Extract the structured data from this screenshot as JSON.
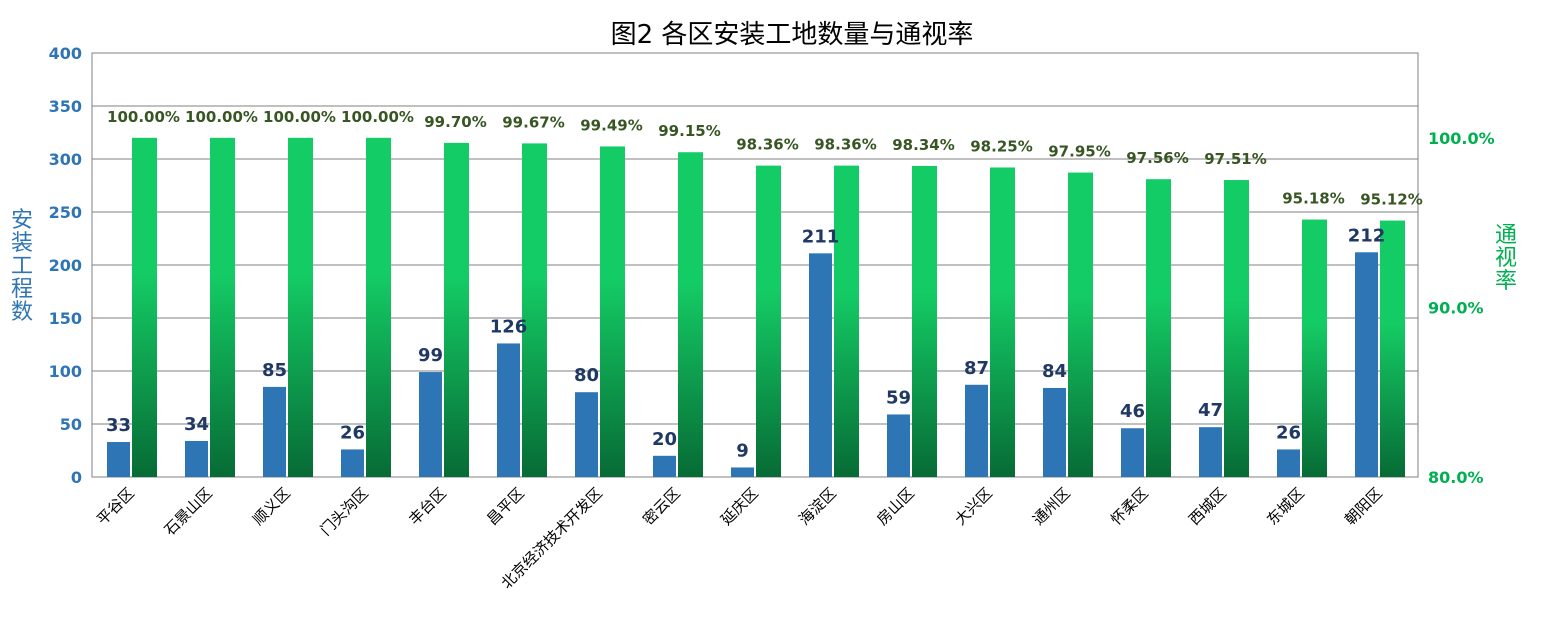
{
  "chart_data": {
    "type": "bar",
    "title": "图2   各区安装工地数量与通视率",
    "ylabel_left": "安装工程数",
    "ylabel_right": "通视率",
    "ylim_left": [
      0,
      400
    ],
    "yticks_left": [
      "0",
      "50",
      "100",
      "150",
      "200",
      "250",
      "300",
      "350",
      "400"
    ],
    "ylim_right": [
      0.8,
      1.05
    ],
    "yticks_right": [
      {
        "value": 0.8,
        "label": "80.0%"
      },
      {
        "value": 0.9,
        "label": "90.0%"
      },
      {
        "value": 1.0,
        "label": "100.0%"
      }
    ],
    "grid": true,
    "categories": [
      "平谷区",
      "石景山区",
      "顺义区",
      "门头沟区",
      "丰台区",
      "昌平区",
      "北京经济技术开发区",
      "密云区",
      "延庆区",
      "海淀区",
      "房山区",
      "大兴区",
      "通州区",
      "怀柔区",
      "西城区",
      "东城区",
      "朝阳区"
    ],
    "series": [
      {
        "axis": "left",
        "color": "#2e75b6",
        "values": [
          33,
          34,
          85,
          26,
          99,
          126,
          80,
          20,
          9,
          211,
          59,
          87,
          84,
          46,
          47,
          26,
          212
        ],
        "labels": [
          "33",
          "34",
          "85",
          "26",
          "99",
          "126",
          "80",
          "20",
          "9",
          "211",
          "59",
          "87",
          "84",
          "46",
          "47",
          "26",
          "212"
        ]
      },
      {
        "axis": "right",
        "color_top": "#14cc65",
        "color_bottom": "#076b35",
        "values": [
          1.0,
          1.0,
          1.0,
          1.0,
          0.997,
          0.9967,
          0.9949,
          0.9915,
          0.9836,
          0.9836,
          0.9834,
          0.9825,
          0.9795,
          0.9756,
          0.9751,
          0.9518,
          0.9512
        ],
        "labels": [
          "100.00%",
          "100.00%",
          "100.00%",
          "100.00%",
          "99.70%",
          "99.67%",
          "99.49%",
          "99.15%",
          "98.36%",
          "98.36%",
          "98.34%",
          "98.25%",
          "97.95%",
          "97.56%",
          "97.51%",
          "95.18%",
          "95.12%"
        ]
      }
    ]
  }
}
